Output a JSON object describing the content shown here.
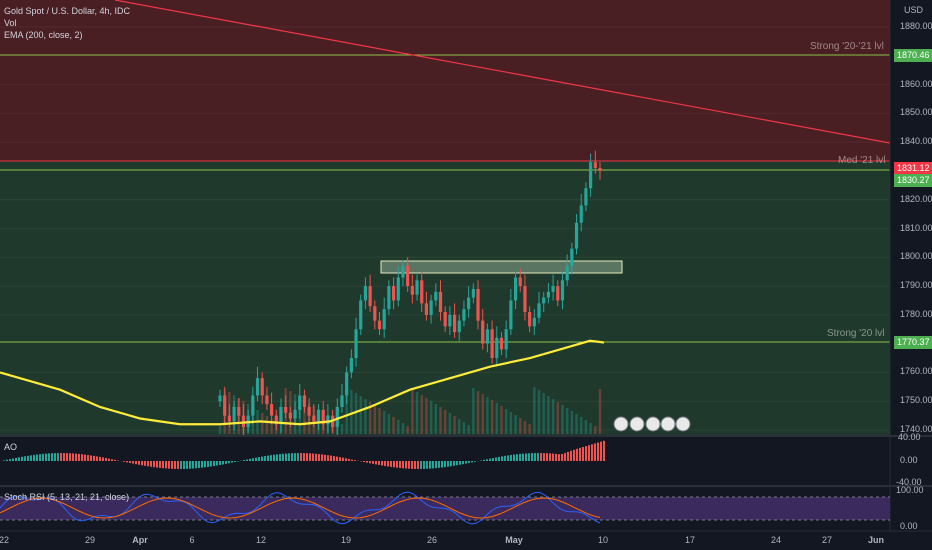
{
  "legend": {
    "title": "Gold Spot / U.S. Dollar, 4h, IDC",
    "vol": "Vol",
    "ema": "EMA (200, close, 2)",
    "ao": "AO",
    "stoch": "Stoch RSI (5, 13, 21, 21, close)"
  },
  "currency": "USD",
  "price_ticks": [
    "1880.00",
    "1860.00",
    "1850.00",
    "1840.00",
    "1820.00",
    "1810.00",
    "1800.00",
    "1790.00",
    "1780.00",
    "1760.00",
    "1750.00",
    "1740.00"
  ],
  "price_tags": {
    "strong_2021": "1870.46",
    "med_21": "1831.12",
    "current": "1830.27",
    "strong_20": "1770.37"
  },
  "zone_labels": {
    "strong_2021": "Strong '20-'21 lvl",
    "med_21": "Med '21 lvl",
    "strong_20": "Strong '20 lvl"
  },
  "ao_ticks": [
    "40.00",
    "0.00",
    "-40.00"
  ],
  "stoch_ticks": [
    "100.00",
    "0.00"
  ],
  "x_labels": [
    "22",
    "29",
    "Apr",
    "6",
    "12",
    "19",
    "26",
    "May",
    "10",
    "17",
    "24",
    "27",
    "Jun"
  ],
  "colors": {
    "bg": "#131722",
    "red_zone": "#4a1f24",
    "green_zone": "#1f3a2c",
    "up": "#26a69a",
    "down": "#ef5350",
    "ema": "#ffeb3b",
    "trend": "#f23645",
    "level_line": "#8bc34a",
    "rsi_band": "#3b2a5e"
  },
  "chart_data": {
    "type": "candlestick",
    "symbol": "Gold Spot / U.S. Dollar",
    "interval": "4h",
    "ylim": [
      1738,
      1890
    ],
    "levels": [
      1870.46,
      1831.12,
      1830.27,
      1770.37
    ],
    "ema_200": [
      [
        0,
        1767
      ],
      [
        10,
        1762
      ],
      [
        20,
        1755
      ],
      [
        30,
        1749
      ],
      [
        40,
        1745
      ],
      [
        50,
        1744
      ],
      [
        60,
        1745
      ],
      [
        70,
        1746
      ],
      [
        80,
        1749
      ],
      [
        90,
        1753
      ],
      [
        100,
        1757
      ],
      [
        110,
        1760
      ],
      [
        120,
        1763
      ],
      [
        130,
        1766
      ],
      [
        140,
        1768
      ],
      [
        150,
        1771
      ]
    ],
    "closes": [
      1752,
      1745,
      1743,
      1748,
      1745,
      1741,
      1745,
      1752,
      1758,
      1752,
      1749,
      1745,
      1742,
      1748,
      1746,
      1744,
      1747,
      1752,
      1748,
      1745,
      1743,
      1747,
      1742,
      1745,
      1741,
      1748,
      1752,
      1760,
      1765,
      1775,
      1785,
      1790,
      1783,
      1778,
      1775,
      1782,
      1790,
      1785,
      1793,
      1797,
      1790,
      1787,
      1792,
      1784,
      1780,
      1785,
      1788,
      1781,
      1776,
      1780,
      1774,
      1778,
      1782,
      1786,
      1789,
      1778,
      1770,
      1775,
      1765,
      1772,
      1768,
      1775,
      1785,
      1793,
      1790,
      1781,
      1776,
      1779,
      1784,
      1786,
      1788,
      1790,
      1785,
      1792,
      1797,
      1803,
      1812,
      1818,
      1824,
      1833,
      1831,
      1830
    ]
  }
}
